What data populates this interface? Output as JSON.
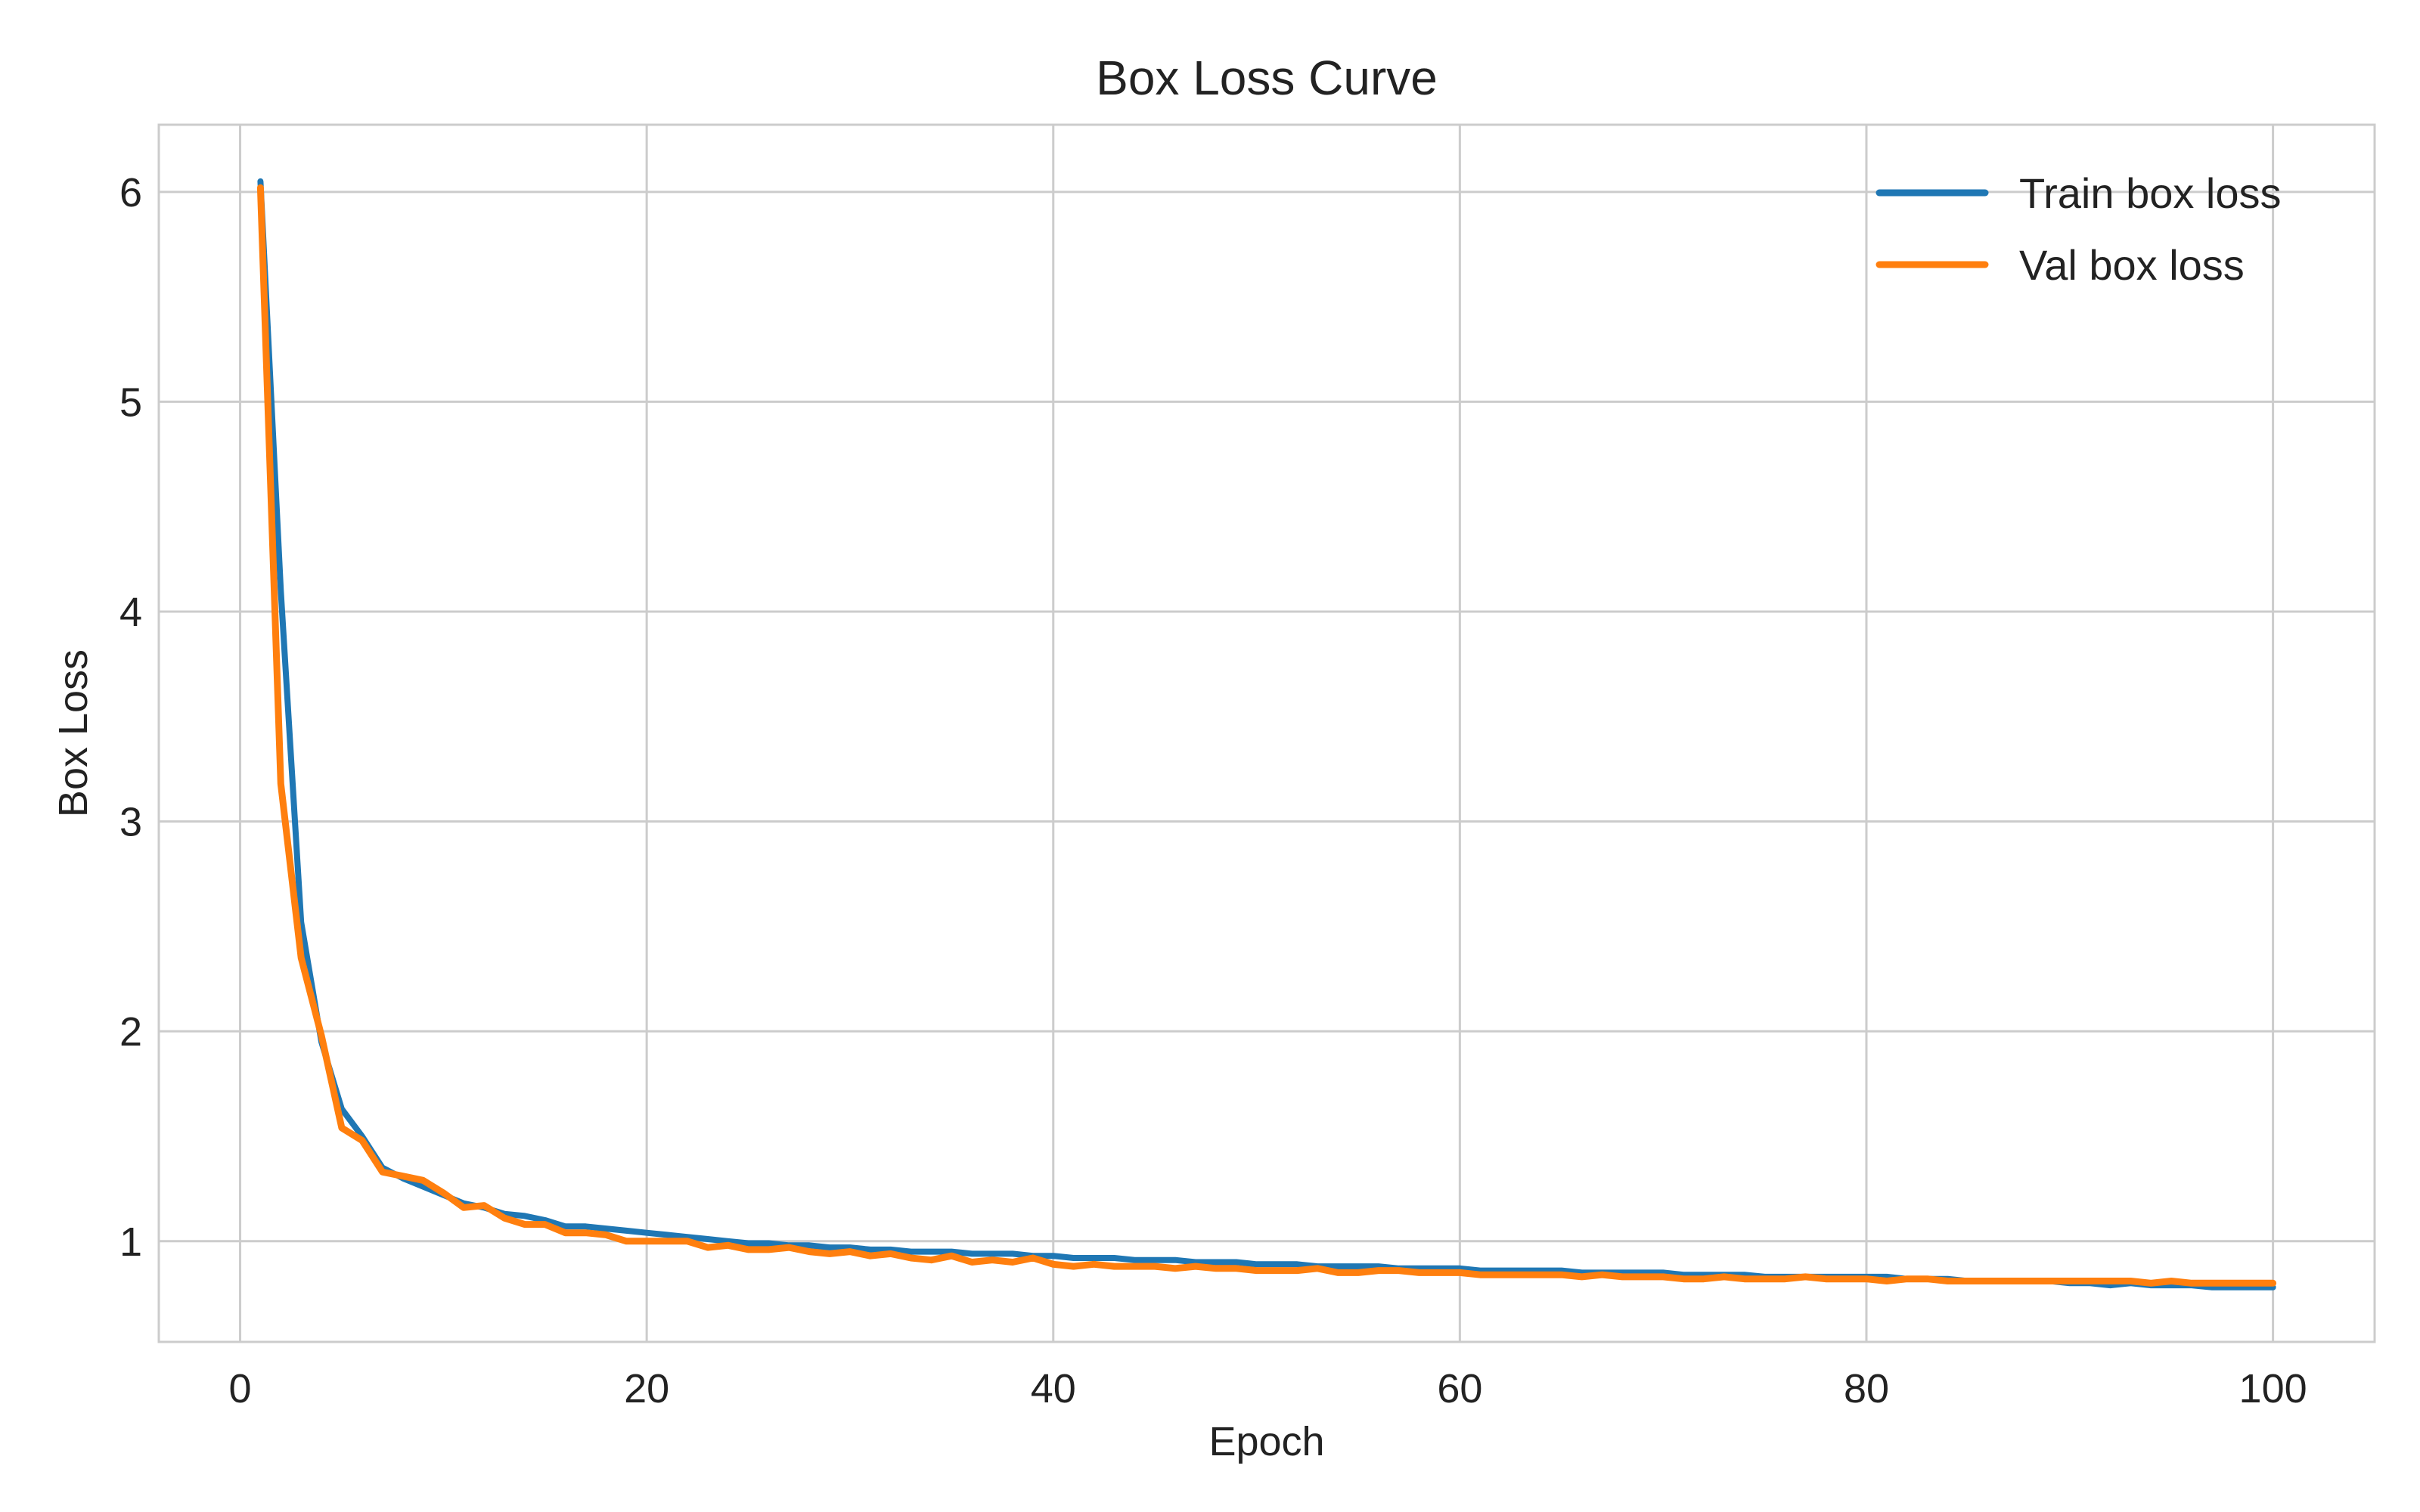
{
  "chart_data": {
    "type": "line",
    "title": "Box Loss Curve",
    "xlabel": "Epoch",
    "ylabel": "Box Loss",
    "xlim": [
      -4,
      105
    ],
    "ylim": [
      0.52,
      6.32
    ],
    "xticks": [
      0,
      20,
      40,
      60,
      80,
      100
    ],
    "yticks": [
      1,
      2,
      3,
      4,
      5,
      6
    ],
    "grid": true,
    "legend_position": "top-right",
    "series": [
      {
        "name": "Train box loss",
        "color": "#1f77b4",
        "x": [
          1,
          2,
          3,
          4,
          5,
          6,
          7,
          8,
          9,
          10,
          11,
          12,
          13,
          14,
          15,
          16,
          17,
          18,
          19,
          20,
          21,
          22,
          23,
          24,
          25,
          26,
          27,
          28,
          29,
          30,
          31,
          32,
          33,
          34,
          35,
          36,
          37,
          38,
          39,
          40,
          41,
          42,
          43,
          44,
          45,
          46,
          47,
          48,
          49,
          50,
          51,
          52,
          53,
          54,
          55,
          56,
          57,
          58,
          59,
          60,
          61,
          62,
          63,
          64,
          65,
          66,
          67,
          68,
          69,
          70,
          71,
          72,
          73,
          74,
          75,
          76,
          77,
          78,
          79,
          80,
          81,
          82,
          83,
          84,
          85,
          86,
          87,
          88,
          89,
          90,
          91,
          92,
          93,
          94,
          95,
          96,
          97,
          98,
          99,
          100
        ],
        "values": [
          6.05,
          4.1,
          2.52,
          1.95,
          1.63,
          1.5,
          1.35,
          1.3,
          1.26,
          1.22,
          1.18,
          1.16,
          1.13,
          1.12,
          1.1,
          1.07,
          1.07,
          1.06,
          1.05,
          1.04,
          1.03,
          1.02,
          1.01,
          1.0,
          0.99,
          0.99,
          0.98,
          0.98,
          0.97,
          0.97,
          0.96,
          0.96,
          0.95,
          0.95,
          0.95,
          0.94,
          0.94,
          0.94,
          0.93,
          0.93,
          0.92,
          0.92,
          0.92,
          0.91,
          0.91,
          0.91,
          0.9,
          0.9,
          0.9,
          0.89,
          0.89,
          0.89,
          0.88,
          0.88,
          0.88,
          0.88,
          0.87,
          0.87,
          0.87,
          0.87,
          0.86,
          0.86,
          0.86,
          0.86,
          0.86,
          0.85,
          0.85,
          0.85,
          0.85,
          0.85,
          0.84,
          0.84,
          0.84,
          0.84,
          0.83,
          0.83,
          0.83,
          0.83,
          0.83,
          0.83,
          0.83,
          0.82,
          0.82,
          0.82,
          0.81,
          0.81,
          0.81,
          0.81,
          0.81,
          0.8,
          0.8,
          0.79,
          0.8,
          0.79,
          0.79,
          0.79,
          0.78,
          0.78,
          0.78,
          0.78
        ]
      },
      {
        "name": "Val box loss",
        "color": "#ff7f0e",
        "x": [
          1,
          2,
          3,
          4,
          5,
          6,
          7,
          8,
          9,
          10,
          11,
          12,
          13,
          14,
          15,
          16,
          17,
          18,
          19,
          20,
          21,
          22,
          23,
          24,
          25,
          26,
          27,
          28,
          29,
          30,
          31,
          32,
          33,
          34,
          35,
          36,
          37,
          38,
          39,
          40,
          41,
          42,
          43,
          44,
          45,
          46,
          47,
          48,
          49,
          50,
          51,
          52,
          53,
          54,
          55,
          56,
          57,
          58,
          59,
          60,
          61,
          62,
          63,
          64,
          65,
          66,
          67,
          68,
          69,
          70,
          71,
          72,
          73,
          74,
          75,
          76,
          77,
          78,
          79,
          80,
          81,
          82,
          83,
          84,
          85,
          86,
          87,
          88,
          89,
          90,
          91,
          92,
          93,
          94,
          95,
          96,
          97,
          98,
          99,
          100
        ],
        "values": [
          6.02,
          3.18,
          2.35,
          1.98,
          1.54,
          1.48,
          1.33,
          1.31,
          1.29,
          1.23,
          1.16,
          1.17,
          1.11,
          1.08,
          1.08,
          1.04,
          1.04,
          1.03,
          1.0,
          1.0,
          1.0,
          1.0,
          0.97,
          0.98,
          0.96,
          0.96,
          0.97,
          0.95,
          0.94,
          0.95,
          0.93,
          0.94,
          0.92,
          0.91,
          0.93,
          0.9,
          0.91,
          0.9,
          0.92,
          0.89,
          0.88,
          0.89,
          0.88,
          0.88,
          0.88,
          0.87,
          0.88,
          0.87,
          0.87,
          0.86,
          0.86,
          0.86,
          0.87,
          0.85,
          0.85,
          0.86,
          0.86,
          0.85,
          0.85,
          0.85,
          0.84,
          0.84,
          0.84,
          0.84,
          0.84,
          0.83,
          0.84,
          0.83,
          0.83,
          0.83,
          0.82,
          0.82,
          0.83,
          0.82,
          0.82,
          0.82,
          0.83,
          0.82,
          0.82,
          0.82,
          0.81,
          0.82,
          0.82,
          0.81,
          0.81,
          0.81,
          0.81,
          0.81,
          0.81,
          0.81,
          0.81,
          0.81,
          0.81,
          0.8,
          0.81,
          0.8,
          0.8,
          0.8,
          0.8,
          0.8
        ]
      }
    ]
  }
}
